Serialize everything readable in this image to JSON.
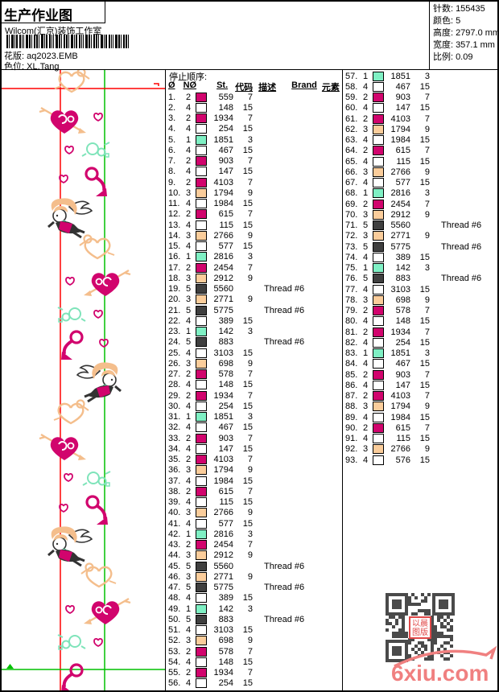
{
  "header": {
    "title": "生产作业图",
    "studio": "Wilcom(汇京)装饰工作室",
    "pattern_label": "花版:",
    "pattern_file": "aq2023.EMB",
    "colorway_label": "色位:",
    "colorway": "XL.Tang"
  },
  "info": {
    "stitches_label": "针数:",
    "stitches": "155435",
    "colors_label": "颜色:",
    "colors": "5",
    "height_label": "高度:",
    "height": "2797.0 mm",
    "width_label": "宽度:",
    "width": "357.1 mm",
    "scale_label": "比例:",
    "scale": "0.09"
  },
  "stop_sequence": {
    "title": "停止顺序:",
    "columns": [
      "Ø",
      "NØ",
      "St.",
      "代码",
      "描述",
      "Brand",
      "元素"
    ],
    "palette": {
      "1": "#7FF0C4",
      "2": "#D1046D",
      "3": "#FBCD9B",
      "4": "#FFFFFF",
      "5": "#3F3F3F"
    },
    "rows": [
      [
        1,
        2,
        559,
        "7",
        ""
      ],
      [
        2,
        4,
        148,
        "15",
        ""
      ],
      [
        3,
        2,
        1934,
        "7",
        ""
      ],
      [
        4,
        4,
        254,
        "15",
        ""
      ],
      [
        5,
        1,
        1851,
        "3",
        ""
      ],
      [
        6,
        4,
        467,
        "15",
        ""
      ],
      [
        7,
        2,
        903,
        "7",
        ""
      ],
      [
        8,
        4,
        147,
        "15",
        ""
      ],
      [
        9,
        2,
        4103,
        "7",
        ""
      ],
      [
        10,
        3,
        1794,
        "9",
        ""
      ],
      [
        11,
        4,
        1984,
        "15",
        ""
      ],
      [
        12,
        2,
        615,
        "7",
        ""
      ],
      [
        13,
        4,
        115,
        "15",
        ""
      ],
      [
        14,
        3,
        2766,
        "9",
        ""
      ],
      [
        15,
        4,
        577,
        "15",
        ""
      ],
      [
        16,
        1,
        2816,
        "3",
        ""
      ],
      [
        17,
        2,
        2454,
        "7",
        ""
      ],
      [
        18,
        3,
        2912,
        "9",
        ""
      ],
      [
        19,
        5,
        5560,
        "",
        "Thread #6"
      ],
      [
        20,
        3,
        2771,
        "9",
        ""
      ],
      [
        21,
        5,
        5775,
        "",
        "Thread #6"
      ],
      [
        22,
        4,
        389,
        "15",
        ""
      ],
      [
        23,
        1,
        142,
        "3",
        ""
      ],
      [
        24,
        5,
        883,
        "",
        "Thread #6"
      ],
      [
        25,
        4,
        3103,
        "15",
        ""
      ],
      [
        26,
        3,
        698,
        "9",
        ""
      ],
      [
        27,
        2,
        578,
        "7",
        ""
      ],
      [
        28,
        4,
        148,
        "15",
        ""
      ],
      [
        29,
        2,
        1934,
        "7",
        ""
      ],
      [
        30,
        4,
        254,
        "15",
        ""
      ],
      [
        31,
        1,
        1851,
        "3",
        ""
      ],
      [
        32,
        4,
        467,
        "15",
        ""
      ],
      [
        33,
        2,
        903,
        "7",
        ""
      ],
      [
        34,
        4,
        147,
        "15",
        ""
      ],
      [
        35,
        2,
        4103,
        "7",
        ""
      ],
      [
        36,
        3,
        1794,
        "9",
        ""
      ],
      [
        37,
        4,
        1984,
        "15",
        ""
      ],
      [
        38,
        2,
        615,
        "7",
        ""
      ],
      [
        39,
        4,
        115,
        "15",
        ""
      ],
      [
        40,
        3,
        2766,
        "9",
        ""
      ],
      [
        41,
        4,
        577,
        "15",
        ""
      ],
      [
        42,
        1,
        2816,
        "3",
        ""
      ],
      [
        43,
        2,
        2454,
        "7",
        ""
      ],
      [
        44,
        3,
        2912,
        "9",
        ""
      ],
      [
        45,
        5,
        5560,
        "",
        "Thread #6"
      ],
      [
        46,
        3,
        2771,
        "9",
        ""
      ],
      [
        47,
        5,
        5775,
        "",
        "Thread #6"
      ],
      [
        48,
        4,
        389,
        "15",
        ""
      ],
      [
        49,
        1,
        142,
        "3",
        ""
      ],
      [
        50,
        5,
        883,
        "",
        "Thread #6"
      ],
      [
        51,
        4,
        3103,
        "15",
        ""
      ],
      [
        52,
        3,
        698,
        "9",
        ""
      ],
      [
        53,
        2,
        578,
        "7",
        ""
      ],
      [
        54,
        4,
        148,
        "15",
        ""
      ],
      [
        55,
        2,
        1934,
        "7",
        ""
      ],
      [
        56,
        4,
        254,
        "15",
        ""
      ],
      [
        57,
        1,
        1851,
        "3",
        ""
      ],
      [
        58,
        4,
        467,
        "15",
        ""
      ],
      [
        59,
        2,
        903,
        "7",
        ""
      ],
      [
        60,
        4,
        147,
        "15",
        ""
      ],
      [
        61,
        2,
        4103,
        "7",
        ""
      ],
      [
        62,
        3,
        1794,
        "9",
        ""
      ],
      [
        63,
        4,
        1984,
        "15",
        ""
      ],
      [
        64,
        2,
        615,
        "7",
        ""
      ],
      [
        65,
        4,
        115,
        "15",
        ""
      ],
      [
        66,
        3,
        2766,
        "9",
        ""
      ],
      [
        67,
        4,
        577,
        "15",
        ""
      ],
      [
        68,
        1,
        2816,
        "3",
        ""
      ],
      [
        69,
        2,
        2454,
        "7",
        ""
      ],
      [
        70,
        3,
        2912,
        "9",
        ""
      ],
      [
        71,
        5,
        5560,
        "",
        "Thread #6"
      ],
      [
        72,
        3,
        2771,
        "9",
        ""
      ],
      [
        73,
        5,
        5775,
        "",
        "Thread #6"
      ],
      [
        74,
        4,
        389,
        "15",
        ""
      ],
      [
        75,
        1,
        142,
        "3",
        ""
      ],
      [
        76,
        5,
        883,
        "",
        "Thread #6"
      ],
      [
        77,
        4,
        3103,
        "15",
        ""
      ],
      [
        78,
        3,
        698,
        "9",
        ""
      ],
      [
        79,
        2,
        578,
        "7",
        ""
      ],
      [
        80,
        4,
        148,
        "15",
        ""
      ],
      [
        81,
        2,
        1934,
        "7",
        ""
      ],
      [
        82,
        4,
        254,
        "15",
        ""
      ],
      [
        83,
        1,
        1851,
        "3",
        ""
      ],
      [
        84,
        4,
        467,
        "15",
        ""
      ],
      [
        85,
        2,
        903,
        "7",
        ""
      ],
      [
        86,
        4,
        147,
        "15",
        ""
      ],
      [
        87,
        2,
        4103,
        "7",
        ""
      ],
      [
        88,
        3,
        1794,
        "9",
        ""
      ],
      [
        89,
        4,
        1984,
        "15",
        ""
      ],
      [
        90,
        2,
        615,
        "7",
        ""
      ],
      [
        91,
        4,
        115,
        "15",
        ""
      ],
      [
        92,
        3,
        2766,
        "9",
        ""
      ],
      [
        93,
        4,
        576,
        "15",
        ""
      ]
    ]
  },
  "design": {
    "colors": {
      "magenta": "#D1046D",
      "peach": "#F4BE8C",
      "aqua": "#7FE4BA",
      "outline": "#333333",
      "guide_red": "#FF0000",
      "guide_green": "#00C000"
    }
  },
  "watermark": {
    "site": "6xiu.com",
    "stamp_top": "以晨",
    "stamp_bottom": "图版",
    "accent": "#F08080"
  }
}
